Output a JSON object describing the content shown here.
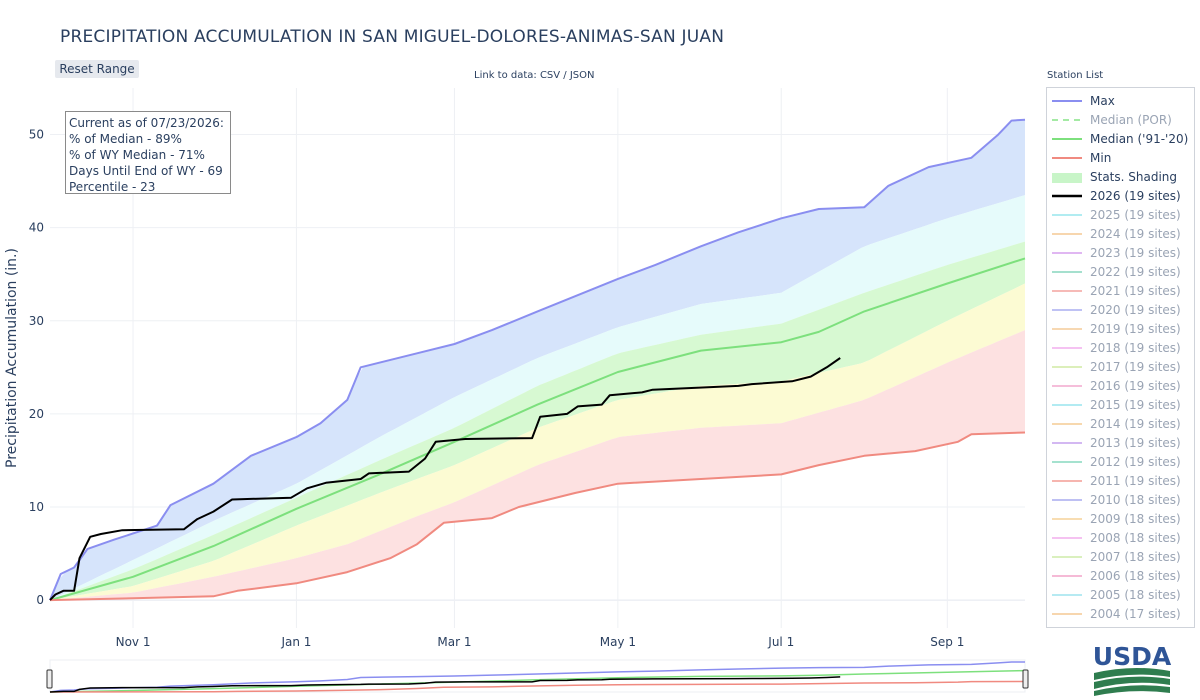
{
  "page": {
    "title": "PRECIPITATION ACCUMULATION IN SAN MIGUEL-DOLORES-ANIMAS-SAN JUAN",
    "reset_button": "Reset Range",
    "link_to_data": "Link to data: CSV / JSON",
    "station_list_title": "Station List",
    "logo_text": "USDA"
  },
  "info_box": {
    "lines": [
      "Current as of 07/23/2026:",
      "% of Median - 89%",
      "% of WY Median - 71%",
      "Days Until End of WY - 69",
      "Percentile - 23"
    ]
  },
  "legend": [
    {
      "label": "Max",
      "color": "#8a8ef0",
      "style": "line",
      "active": true
    },
    {
      "label": "Median (POR)",
      "color": "#8ee58e",
      "style": "dash",
      "active": false
    },
    {
      "label": "Median ('91-'20)",
      "color": "#7de07d",
      "style": "line",
      "active": true
    },
    {
      "label": "Min",
      "color": "#f08a80",
      "style": "line",
      "active": true
    },
    {
      "label": "Stats. Shading",
      "color": "#c8f5c8",
      "style": "fill",
      "active": true
    },
    {
      "label": "2026 (19 sites)",
      "color": "#000000",
      "style": "bold",
      "active": true
    },
    {
      "label": "2025 (19 sites)",
      "color": "#9ee8ee",
      "style": "line",
      "active": false
    },
    {
      "label": "2024 (19 sites)",
      "color": "#f6cd9a",
      "style": "line",
      "active": false
    },
    {
      "label": "2023 (19 sites)",
      "color": "#d9a6ef",
      "style": "line",
      "active": false
    },
    {
      "label": "2022 (19 sites)",
      "color": "#8fd9c2",
      "style": "line",
      "active": false
    },
    {
      "label": "2021 (19 sites)",
      "color": "#f4a9a6",
      "style": "line",
      "active": false
    },
    {
      "label": "2020 (19 sites)",
      "color": "#b0b3f2",
      "style": "line",
      "active": false
    },
    {
      "label": "2019 (19 sites)",
      "color": "#f6cf9f",
      "style": "line",
      "active": false
    },
    {
      "label": "2018 (19 sites)",
      "color": "#f3b4ef",
      "style": "line",
      "active": false
    },
    {
      "label": "2017 (19 sites)",
      "color": "#d4ecaa",
      "style": "line",
      "active": false
    },
    {
      "label": "2016 (19 sites)",
      "color": "#f3aed1",
      "style": "line",
      "active": false
    },
    {
      "label": "2015 (19 sites)",
      "color": "#9fe7ef",
      "style": "line",
      "active": false
    },
    {
      "label": "2014 (19 sites)",
      "color": "#f6cf9a",
      "style": "line",
      "active": false
    },
    {
      "label": "2013 (19 sites)",
      "color": "#c9a7f0",
      "style": "line",
      "active": false
    },
    {
      "label": "2012 (19 sites)",
      "color": "#8fdcc4",
      "style": "line",
      "active": false
    },
    {
      "label": "2011 (19 sites)",
      "color": "#f4a39c",
      "style": "line",
      "active": false
    },
    {
      "label": "2010 (18 sites)",
      "color": "#aeb1f1",
      "style": "line",
      "active": false
    },
    {
      "label": "2009 (18 sites)",
      "color": "#f7d59f",
      "style": "line",
      "active": false
    },
    {
      "label": "2008 (18 sites)",
      "color": "#f3b3ee",
      "style": "line",
      "active": false
    },
    {
      "label": "2007 (18 sites)",
      "color": "#d2edae",
      "style": "line",
      "active": false
    },
    {
      "label": "2006 (18 sites)",
      "color": "#f3aacd",
      "style": "line",
      "active": false
    },
    {
      "label": "2005 (18 sites)",
      "color": "#a4e6ef",
      "style": "line",
      "active": false
    },
    {
      "label": "2004 (17 sites)",
      "color": "#f6cd9b",
      "style": "line",
      "active": false
    }
  ],
  "chart_data": {
    "type": "area",
    "title": "PRECIPITATION ACCUMULATION IN SAN MIGUEL-DOLORES-ANIMAS-SAN JUAN",
    "ylabel": "Precipitation Accumulation (in.)",
    "xlabel": "",
    "ylim": [
      -3,
      55
    ],
    "xlim": [
      "2025-10-01",
      "2026-09-30"
    ],
    "x_ticks": [
      {
        "date": "2025-11-01",
        "label": "Nov 1"
      },
      {
        "date": "2026-01-01",
        "label": "Jan 1"
      },
      {
        "date": "2026-03-01",
        "label": "Mar 1"
      },
      {
        "date": "2026-05-01",
        "label": "May 1"
      },
      {
        "date": "2026-07-01",
        "label": "Jul 1"
      },
      {
        "date": "2026-09-01",
        "label": "Sep 1"
      }
    ],
    "y_ticks": [
      0,
      10,
      20,
      30,
      40,
      50
    ],
    "grid": true,
    "legend_position": "right",
    "colors": {
      "max_band": "#d6e4fb",
      "upper_band": "#e6fbfb",
      "median_band": "#d7f9d2",
      "lower_band": "#fcfbd3",
      "min_band": "#fde1e1",
      "max_line": "#8a8ef0",
      "median_line": "#7de07d",
      "min_line": "#f08a80",
      "current_line": "#000000"
    },
    "series": [
      {
        "name": "Max",
        "points": [
          [
            "2025-10-01",
            0
          ],
          [
            "2025-10-05",
            2.8
          ],
          [
            "2025-10-10",
            3.5
          ],
          [
            "2025-10-15",
            5.5
          ],
          [
            "2025-10-25",
            6.5
          ],
          [
            "2025-11-10",
            8.0
          ],
          [
            "2025-11-15",
            10.2
          ],
          [
            "2025-12-01",
            12.5
          ],
          [
            "2025-12-15",
            15.5
          ],
          [
            "2026-01-01",
            17.5
          ],
          [
            "2026-01-10",
            19.0
          ],
          [
            "2026-01-20",
            21.5
          ],
          [
            "2026-01-25",
            25.0
          ],
          [
            "2026-02-15",
            26.5
          ],
          [
            "2026-03-01",
            27.5
          ],
          [
            "2026-03-15",
            29.0
          ],
          [
            "2026-04-01",
            31.0
          ],
          [
            "2026-05-01",
            34.5
          ],
          [
            "2026-05-15",
            36.0
          ],
          [
            "2026-06-01",
            38.0
          ],
          [
            "2026-06-15",
            39.5
          ],
          [
            "2026-07-01",
            41.0
          ],
          [
            "2026-07-15",
            42.0
          ],
          [
            "2026-08-01",
            42.2
          ],
          [
            "2026-08-10",
            44.5
          ],
          [
            "2026-08-25",
            46.5
          ],
          [
            "2026-09-10",
            47.5
          ],
          [
            "2026-09-20",
            50.0
          ],
          [
            "2026-09-25",
            51.5
          ],
          [
            "2026-09-30",
            51.6
          ]
        ]
      },
      {
        "name": "Median ('91-'20)",
        "points": [
          [
            "2025-10-01",
            0
          ],
          [
            "2025-11-01",
            2.5
          ],
          [
            "2025-12-01",
            5.8
          ],
          [
            "2026-01-01",
            9.8
          ],
          [
            "2026-02-01",
            13.5
          ],
          [
            "2026-03-01",
            17.0
          ],
          [
            "2026-04-01",
            21.0
          ],
          [
            "2026-05-01",
            24.5
          ],
          [
            "2026-06-01",
            26.8
          ],
          [
            "2026-07-01",
            27.7
          ],
          [
            "2026-07-15",
            28.8
          ],
          [
            "2026-08-01",
            31.0
          ],
          [
            "2026-09-01",
            34.0
          ],
          [
            "2026-09-30",
            36.7
          ]
        ]
      },
      {
        "name": "Min",
        "points": [
          [
            "2025-10-01",
            0
          ],
          [
            "2025-11-01",
            0.2
          ],
          [
            "2025-12-01",
            0.4
          ],
          [
            "2025-12-10",
            1.0
          ],
          [
            "2026-01-01",
            1.8
          ],
          [
            "2026-01-20",
            3.0
          ],
          [
            "2026-02-05",
            4.5
          ],
          [
            "2026-02-15",
            6.0
          ],
          [
            "2026-02-25",
            8.3
          ],
          [
            "2026-03-15",
            8.8
          ],
          [
            "2026-03-25",
            10.0
          ],
          [
            "2026-04-15",
            11.5
          ],
          [
            "2026-05-01",
            12.5
          ],
          [
            "2026-06-01",
            13.0
          ],
          [
            "2026-07-01",
            13.5
          ],
          [
            "2026-07-15",
            14.5
          ],
          [
            "2026-08-01",
            15.5
          ],
          [
            "2026-08-20",
            16.0
          ],
          [
            "2026-09-05",
            17.0
          ],
          [
            "2026-09-10",
            17.8
          ],
          [
            "2026-09-30",
            18.0
          ]
        ]
      },
      {
        "name": "2026 (19 sites)",
        "points": [
          [
            "2025-10-01",
            0
          ],
          [
            "2025-10-03",
            0.6
          ],
          [
            "2025-10-06",
            1.0
          ],
          [
            "2025-10-10",
            1.0
          ],
          [
            "2025-10-12",
            4.5
          ],
          [
            "2025-10-16",
            6.8
          ],
          [
            "2025-10-20",
            7.1
          ],
          [
            "2025-10-28",
            7.5
          ],
          [
            "2025-11-20",
            7.6
          ],
          [
            "2025-11-25",
            8.7
          ],
          [
            "2025-12-01",
            9.5
          ],
          [
            "2025-12-08",
            10.8
          ],
          [
            "2025-12-30",
            11.0
          ],
          [
            "2026-01-05",
            12.0
          ],
          [
            "2026-01-12",
            12.6
          ],
          [
            "2026-01-25",
            13.0
          ],
          [
            "2026-01-28",
            13.6
          ],
          [
            "2026-02-12",
            13.8
          ],
          [
            "2026-02-18",
            15.2
          ],
          [
            "2026-02-22",
            17.0
          ],
          [
            "2026-03-05",
            17.3
          ],
          [
            "2026-03-30",
            17.4
          ],
          [
            "2026-04-02",
            19.7
          ],
          [
            "2026-04-12",
            20.0
          ],
          [
            "2026-04-16",
            20.8
          ],
          [
            "2026-04-25",
            21.0
          ],
          [
            "2026-04-28",
            22.0
          ],
          [
            "2026-05-10",
            22.3
          ],
          [
            "2026-05-14",
            22.6
          ],
          [
            "2026-06-15",
            23.0
          ],
          [
            "2026-06-20",
            23.2
          ],
          [
            "2026-07-05",
            23.5
          ],
          [
            "2026-07-12",
            24.0
          ],
          [
            "2026-07-18",
            25.0
          ],
          [
            "2026-07-23",
            26.0
          ]
        ]
      }
    ],
    "stats_bands": {
      "p90": [
        [
          "2025-10-01",
          0
        ],
        [
          "2025-11-01",
          4.3
        ],
        [
          "2025-12-01",
          8.5
        ],
        [
          "2026-01-01",
          12.5
        ],
        [
          "2026-02-01",
          17.5
        ],
        [
          "2026-03-01",
          21.8
        ],
        [
          "2026-04-01",
          26.0
        ],
        [
          "2026-05-01",
          29.3
        ],
        [
          "2026-06-01",
          31.8
        ],
        [
          "2026-07-01",
          33.0
        ],
        [
          "2026-08-01",
          38.0
        ],
        [
          "2026-09-01",
          41.0
        ],
        [
          "2026-09-30",
          43.5
        ]
      ],
      "p70": [
        [
          "2025-10-01",
          0
        ],
        [
          "2025-11-01",
          3.3
        ],
        [
          "2025-12-01",
          7.0
        ],
        [
          "2026-01-01",
          11.0
        ],
        [
          "2026-02-01",
          15.0
        ],
        [
          "2026-03-01",
          18.5
        ],
        [
          "2026-04-01",
          23.0
        ],
        [
          "2026-05-01",
          26.5
        ],
        [
          "2026-06-01",
          28.5
        ],
        [
          "2026-07-01",
          29.7
        ],
        [
          "2026-08-01",
          33.0
        ],
        [
          "2026-09-01",
          36.0
        ],
        [
          "2026-09-30",
          38.5
        ]
      ],
      "p30": [
        [
          "2025-10-01",
          0
        ],
        [
          "2025-11-01",
          1.5
        ],
        [
          "2025-12-01",
          4.2
        ],
        [
          "2026-01-01",
          8.0
        ],
        [
          "2026-02-01",
          11.5
        ],
        [
          "2026-03-01",
          14.5
        ],
        [
          "2026-04-01",
          18.5
        ],
        [
          "2026-05-01",
          21.5
        ],
        [
          "2026-06-01",
          23.0
        ],
        [
          "2026-07-01",
          23.5
        ],
        [
          "2026-08-01",
          25.5
        ],
        [
          "2026-09-01",
          30.0
        ],
        [
          "2026-09-30",
          34.0
        ]
      ],
      "p10": [
        [
          "2025-10-01",
          0
        ],
        [
          "2025-11-01",
          0.8
        ],
        [
          "2025-12-01",
          2.5
        ],
        [
          "2026-01-01",
          4.5
        ],
        [
          "2026-01-20",
          6.0
        ],
        [
          "2026-02-15",
          9.0
        ],
        [
          "2026-03-01",
          10.5
        ],
        [
          "2026-04-01",
          14.5
        ],
        [
          "2026-05-01",
          17.5
        ],
        [
          "2026-06-01",
          18.5
        ],
        [
          "2026-07-01",
          19.0
        ],
        [
          "2026-08-01",
          21.5
        ],
        [
          "2026-09-01",
          25.5
        ],
        [
          "2026-09-30",
          29.0
        ]
      ]
    }
  }
}
